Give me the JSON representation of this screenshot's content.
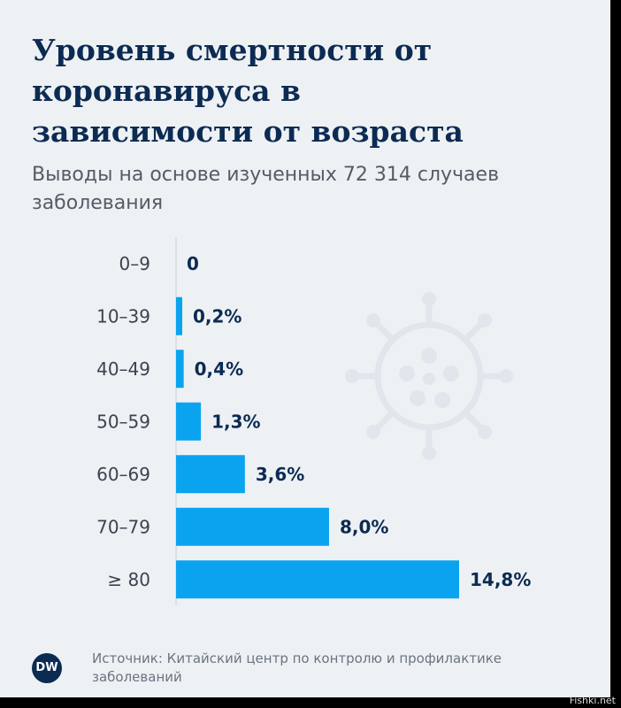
{
  "title": "Уровень смертности от коронавируса в зависимости от возраста",
  "subtitle": "Выводы на основе изученных 72 314 случаев заболевания",
  "source": "Источник: Китайский центр по контролю и профилактике заболеваний",
  "logo": "DW",
  "watermark": "Fishki.net",
  "colors": {
    "bar": "#0aa3ef",
    "axis": "#c9d0d8",
    "title": "#0c2b53",
    "label": "#0c2b53",
    "category": "#3b4350"
  },
  "chart_data": {
    "type": "bar",
    "orientation": "horizontal",
    "categories": [
      "0–9",
      "10–39",
      "40–49",
      "50–59",
      "60–69",
      "70–79",
      "≥ 80"
    ],
    "values": [
      0,
      0.2,
      0.4,
      1.3,
      3.6,
      8.0,
      14.8
    ],
    "value_labels": [
      "0",
      "0,2%",
      "0,4%",
      "1,3%",
      "3,6%",
      "8,0%",
      "14,8%"
    ],
    "xlim": [
      0,
      14.8
    ],
    "grid": false
  }
}
